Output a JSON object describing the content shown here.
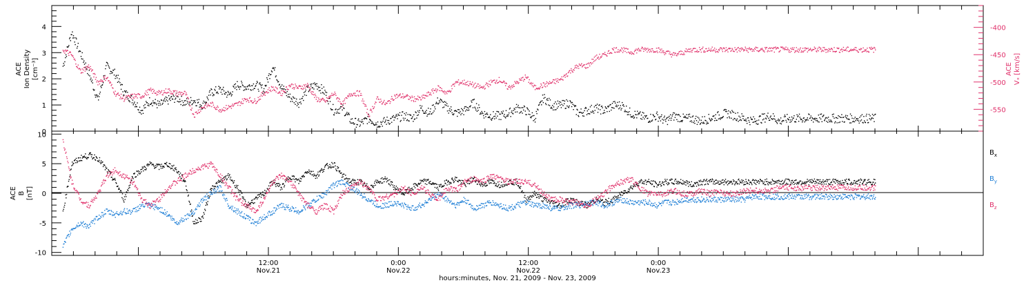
{
  "colors": {
    "black": "#000000",
    "pink": "#e0306a",
    "blue": "#1f7fd6"
  },
  "chart_data": [
    {
      "type": "scatter",
      "panel": "top",
      "ylabel_left": [
        "ACE",
        "Ion Density",
        "[cm⁻³]"
      ],
      "ylabel_right": [
        "ACE",
        "Vₓ [km/s]"
      ],
      "ylim_left": [
        0,
        4.8
      ],
      "ylim_right": [
        -590,
        -360
      ],
      "yticks_left": [
        "0",
        "1",
        "2",
        "3",
        "4"
      ],
      "yticks_right": [
        "-400",
        "-450",
        "-500",
        "-550"
      ],
      "series": [
        {
          "name": "Ion Density",
          "axis": "left",
          "color": "#000000",
          "x": [
            0,
            2,
            4,
            5,
            6,
            8,
            10,
            12,
            14,
            16,
            18,
            20,
            22,
            24,
            26,
            28,
            30,
            32,
            34,
            36,
            38,
            40,
            42,
            44,
            46,
            48,
            50,
            52,
            54,
            56,
            58,
            60,
            62,
            64,
            66,
            68,
            70,
            72,
            74,
            76,
            78,
            80,
            82,
            84,
            86,
            88,
            90,
            92,
            94,
            96,
            98,
            100,
            102,
            104,
            106,
            108,
            110,
            112,
            114,
            116,
            118,
            120,
            122,
            124,
            126,
            128,
            130,
            132,
            134,
            136,
            138,
            140,
            142,
            144,
            146,
            148,
            150,
            152,
            154,
            156,
            158,
            160,
            162,
            164,
            166,
            168,
            170,
            172,
            174,
            176,
            178,
            180,
            182,
            184,
            186
          ],
          "y": [
            2.5,
            3.8,
            3.0,
            2.6,
            2.2,
            1.2,
            2.5,
            2.2,
            1.5,
            1.2,
            0.8,
            1.2,
            1.0,
            1.2,
            1.3,
            1.1,
            1.2,
            1.0,
            1.5,
            1.6,
            1.4,
            1.8,
            1.7,
            1.8,
            1.6,
            2.5,
            1.7,
            1.3,
            1.1,
            1.6,
            1.8,
            1.5,
            0.8,
            0.9,
            0.4,
            0.3,
            0.5,
            0.3,
            0.4,
            0.5,
            0.6,
            0.5,
            0.9,
            0.7,
            1.2,
            0.9,
            0.7,
            0.8,
            1.1,
            0.7,
            0.6,
            0.6,
            0.7,
            0.9,
            0.8,
            0.5,
            1.3,
            1.0,
            1.0,
            1.1,
            0.7,
            0.8,
            0.9,
            0.8,
            1.0,
            1.0,
            0.7,
            0.6,
            0.5,
            0.6,
            0.4,
            0.6,
            0.5,
            0.5,
            0.4,
            0.5,
            0.6,
            0.7,
            0.6,
            0.5,
            0.4,
            0.5,
            0.6,
            0.4,
            0.5,
            0.5,
            0.5,
            0.5,
            0.5,
            0.5,
            0.5,
            0.5,
            0.5,
            0.5,
            0.5
          ]
        },
        {
          "name": "Vx",
          "axis": "right",
          "color": "#e0306a",
          "x": [
            0,
            2,
            4,
            6,
            8,
            10,
            12,
            14,
            16,
            18,
            20,
            22,
            24,
            26,
            28,
            30,
            32,
            34,
            36,
            38,
            40,
            42,
            44,
            46,
            48,
            50,
            52,
            54,
            56,
            58,
            60,
            62,
            64,
            66,
            68,
            70,
            72,
            74,
            76,
            78,
            80,
            82,
            84,
            86,
            88,
            90,
            92,
            94,
            96,
            98,
            100,
            102,
            104,
            106,
            108,
            110,
            112,
            114,
            116,
            118,
            120,
            122,
            124,
            126,
            128,
            130,
            132,
            134,
            136,
            138,
            140,
            142,
            144,
            146,
            148,
            150,
            152,
            154,
            156,
            158,
            160,
            162,
            164,
            166,
            168,
            170,
            172,
            174,
            176,
            178,
            180,
            182,
            184,
            186
          ],
          "y": [
            -440,
            -450,
            -480,
            -470,
            -500,
            -490,
            -520,
            -530,
            -525,
            -525,
            -515,
            -520,
            -515,
            -520,
            -520,
            -560,
            -545,
            -540,
            -550,
            -545,
            -540,
            -530,
            -535,
            -520,
            -510,
            -520,
            -505,
            -510,
            -505,
            -530,
            -535,
            -520,
            -540,
            -520,
            -520,
            -560,
            -530,
            -540,
            -525,
            -525,
            -530,
            -530,
            -520,
            -510,
            -520,
            -500,
            -500,
            -505,
            -510,
            -500,
            -495,
            -510,
            -500,
            -490,
            -510,
            -505,
            -500,
            -495,
            -480,
            -470,
            -470,
            -455,
            -450,
            -440,
            -440,
            -445,
            -440,
            -440,
            -440,
            -445,
            -450,
            -445,
            -440,
            -440,
            -440,
            -440,
            -440,
            -440,
            -440,
            -440,
            -440,
            -440,
            -440,
            -440,
            -440,
            -440,
            -440,
            -440,
            -440,
            -440,
            -440,
            -440,
            -440,
            -440
          ]
        }
      ]
    },
    {
      "type": "scatter",
      "panel": "bottom",
      "ylabel_left": [
        "ACE",
        "B",
        "[nT]"
      ],
      "ylim": [
        -10.5,
        10.5
      ],
      "yticks": [
        "10",
        "5",
        "0",
        "-5",
        "-10"
      ],
      "legend": [
        {
          "label": "B",
          "sub": "x",
          "color": "#000000"
        },
        {
          "label": "B",
          "sub": "y",
          "color": "#1f7fd6"
        },
        {
          "label": "B",
          "sub": "z",
          "color": "#e0306a"
        }
      ],
      "series": [
        {
          "name": "Bx",
          "color": "#000000",
          "x": [
            0,
            2,
            4,
            6,
            8,
            10,
            12,
            14,
            16,
            18,
            20,
            22,
            24,
            26,
            28,
            30,
            32,
            34,
            36,
            38,
            40,
            42,
            44,
            46,
            48,
            50,
            52,
            54,
            56,
            58,
            60,
            62,
            64,
            66,
            68,
            70,
            72,
            74,
            76,
            78,
            80,
            82,
            84,
            86,
            88,
            90,
            92,
            94,
            96,
            98,
            100,
            102,
            104,
            106,
            108,
            110,
            112,
            114,
            116,
            118,
            120,
            122,
            124,
            126,
            128,
            130,
            132,
            134,
            136,
            138,
            140,
            142,
            144,
            146,
            148,
            150,
            152,
            154,
            156,
            158,
            160,
            162,
            164,
            166,
            168,
            170,
            172,
            174,
            176,
            178,
            180,
            182,
            184,
            186
          ],
          "y": [
            -3,
            5,
            6,
            6.5,
            6,
            4,
            2,
            -1,
            3,
            4,
            5,
            4.5,
            5,
            4,
            2,
            -5,
            -4,
            1,
            2,
            3,
            1,
            -2,
            -1,
            0,
            2,
            1,
            3,
            2,
            4,
            3,
            4.5,
            5,
            3,
            2,
            2,
            1,
            2,
            2.5,
            1,
            0,
            1,
            2,
            2,
            1,
            2,
            2.5,
            1.5,
            2.5,
            1.5,
            2,
            1.5,
            2,
            2,
            -1,
            0,
            -1,
            -1.5,
            -2,
            -1,
            -1.5,
            -2,
            -1,
            -1.5,
            -1,
            0,
            1,
            2,
            2,
            1.5,
            2,
            2,
            2,
            1.5,
            2,
            2,
            2,
            2,
            2,
            2,
            2,
            2,
            2,
            2,
            2,
            2,
            2,
            2,
            2,
            2,
            2,
            2,
            2,
            2,
            2
          ]
        },
        {
          "name": "By",
          "color": "#1f7fd6",
          "x": [
            0,
            2,
            4,
            6,
            8,
            10,
            12,
            14,
            16,
            18,
            20,
            22,
            24,
            26,
            28,
            30,
            32,
            34,
            36,
            38,
            40,
            42,
            44,
            46,
            48,
            50,
            52,
            54,
            56,
            58,
            60,
            62,
            64,
            66,
            68,
            70,
            72,
            74,
            76,
            78,
            80,
            82,
            84,
            86,
            88,
            90,
            92,
            94,
            96,
            98,
            100,
            102,
            104,
            106,
            108,
            110,
            112,
            114,
            116,
            118,
            120,
            122,
            124,
            126,
            128,
            130,
            132,
            134,
            136,
            138,
            140,
            142,
            144,
            146,
            148,
            150,
            152,
            154,
            156,
            158,
            160,
            162,
            164,
            166,
            168,
            170,
            172,
            174,
            176,
            178,
            180,
            182,
            184,
            186
          ],
          "y": [
            -9,
            -6,
            -5,
            -5.5,
            -4,
            -3,
            -3.5,
            -3,
            -3,
            -2,
            -2,
            -2.5,
            -3.5,
            -5,
            -4,
            -3,
            -1,
            0,
            1,
            -2,
            -3,
            -4,
            -5,
            -4,
            -3,
            -2,
            -2.5,
            -3,
            -2,
            -1,
            0,
            1.5,
            2,
            1,
            0,
            -1,
            -2,
            -2,
            -1.5,
            -2,
            -2.5,
            -2,
            -1,
            0,
            -1,
            -2,
            -1,
            -2.5,
            -2,
            -1.5,
            -2,
            -2.5,
            -2,
            -1.5,
            -2,
            -2,
            -2.5,
            -2.5,
            -2,
            -2,
            -1.5,
            -1.5,
            -2,
            -1.5,
            -1,
            -1.5,
            -1.5,
            -1.5,
            -2,
            -1.5,
            -1.5,
            -1,
            -1,
            -1,
            -1,
            -1,
            -1,
            -1,
            -1,
            -0.5,
            -0.5,
            -0.5,
            -0.5,
            -0.5,
            -0.5,
            -0.5,
            -0.5,
            -0.5,
            -0.5,
            -0.5,
            -0.5,
            -0.5,
            -0.5,
            -0.5
          ]
        },
        {
          "name": "Bz",
          "color": "#e0306a",
          "x": [
            0,
            2,
            4,
            6,
            8,
            10,
            12,
            14,
            16,
            18,
            20,
            22,
            24,
            26,
            28,
            30,
            32,
            34,
            36,
            38,
            40,
            42,
            44,
            46,
            48,
            50,
            52,
            54,
            56,
            58,
            60,
            62,
            64,
            66,
            68,
            70,
            72,
            74,
            76,
            78,
            80,
            82,
            84,
            86,
            88,
            90,
            92,
            94,
            96,
            98,
            100,
            102,
            104,
            106,
            108,
            110,
            112,
            114,
            116,
            118,
            120,
            122,
            124,
            126,
            128,
            130,
            132,
            134,
            136,
            138,
            140,
            142,
            144,
            146,
            148,
            150,
            152,
            154,
            156,
            158,
            160,
            162,
            164,
            166,
            168,
            170,
            172,
            174,
            176,
            178,
            180,
            182,
            184,
            186
          ],
          "y": [
            9,
            2,
            -1,
            -2,
            0,
            3,
            4,
            3,
            2,
            -1,
            -2,
            -1,
            1,
            2,
            3,
            4,
            4.5,
            5,
            3,
            1,
            -1,
            -2,
            -3,
            -1,
            2,
            3,
            2,
            0,
            -2,
            -3,
            -2,
            -3,
            0,
            1,
            2,
            1,
            -1,
            -0.5,
            0,
            1,
            0,
            1,
            0,
            -1,
            1,
            0.5,
            2,
            2.5,
            2,
            3,
            2.5,
            2,
            2,
            2,
            1.5,
            0,
            -1,
            -1,
            -1.5,
            -1.5,
            -2,
            -1,
            0,
            1.5,
            2,
            2.5,
            1,
            0,
            0,
            0,
            0.5,
            0,
            0,
            0.5,
            0,
            0.5,
            0,
            0,
            0.5,
            0.5,
            0.5,
            0.5,
            1,
            1,
            1,
            1,
            1,
            1,
            1,
            1,
            1,
            1,
            1,
            1
          ]
        }
      ]
    }
  ],
  "xaxis": {
    "ticks": [
      {
        "time": "12:00",
        "day": "Nov.21",
        "hours": 12
      },
      {
        "time": "0:00",
        "day": "Nov.22",
        "hours": 24
      },
      {
        "time": "12:00",
        "day": "Nov.22",
        "hours": 36
      },
      {
        "time": "0:00",
        "day": "Nov.23",
        "hours": 48
      }
    ],
    "title": "hours:minutes, Nov. 21, 2009 - Nov. 23, 2009"
  }
}
